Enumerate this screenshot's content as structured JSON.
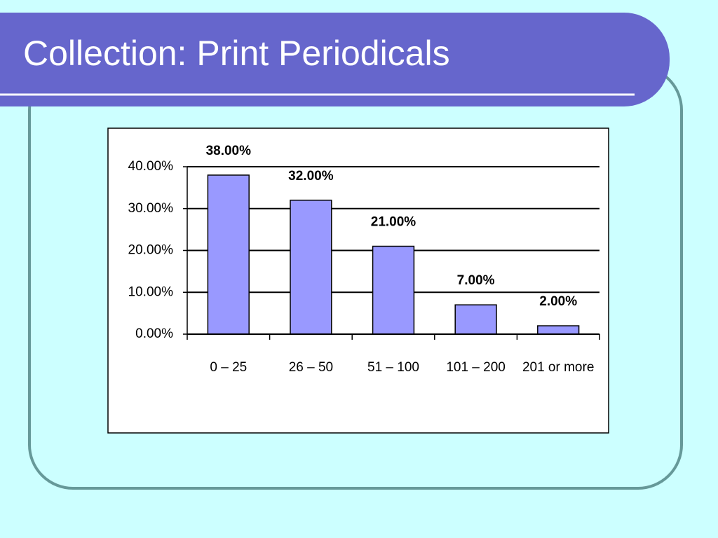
{
  "chart_data": {
    "type": "bar",
    "title": "Collection: Print Periodicals",
    "categories": [
      "0 – 25",
      "26 – 50",
      "51 – 100",
      "101 – 200",
      "201 or more"
    ],
    "values": [
      38,
      32,
      21,
      7,
      2
    ],
    "value_labels": [
      "38.00%",
      "32.00%",
      "21.00%",
      "7.00%",
      "2.00%"
    ],
    "color": "#9999ff",
    "ylim": [
      0,
      40
    ],
    "yticks": [
      {
        "value": 0,
        "label": "0.00%"
      },
      {
        "value": 10,
        "label": "10.00%"
      },
      {
        "value": 20,
        "label": "20.00%"
      },
      {
        "value": 30,
        "label": "30.00%"
      },
      {
        "value": 40,
        "label": "40.00%"
      }
    ],
    "grid": true
  }
}
